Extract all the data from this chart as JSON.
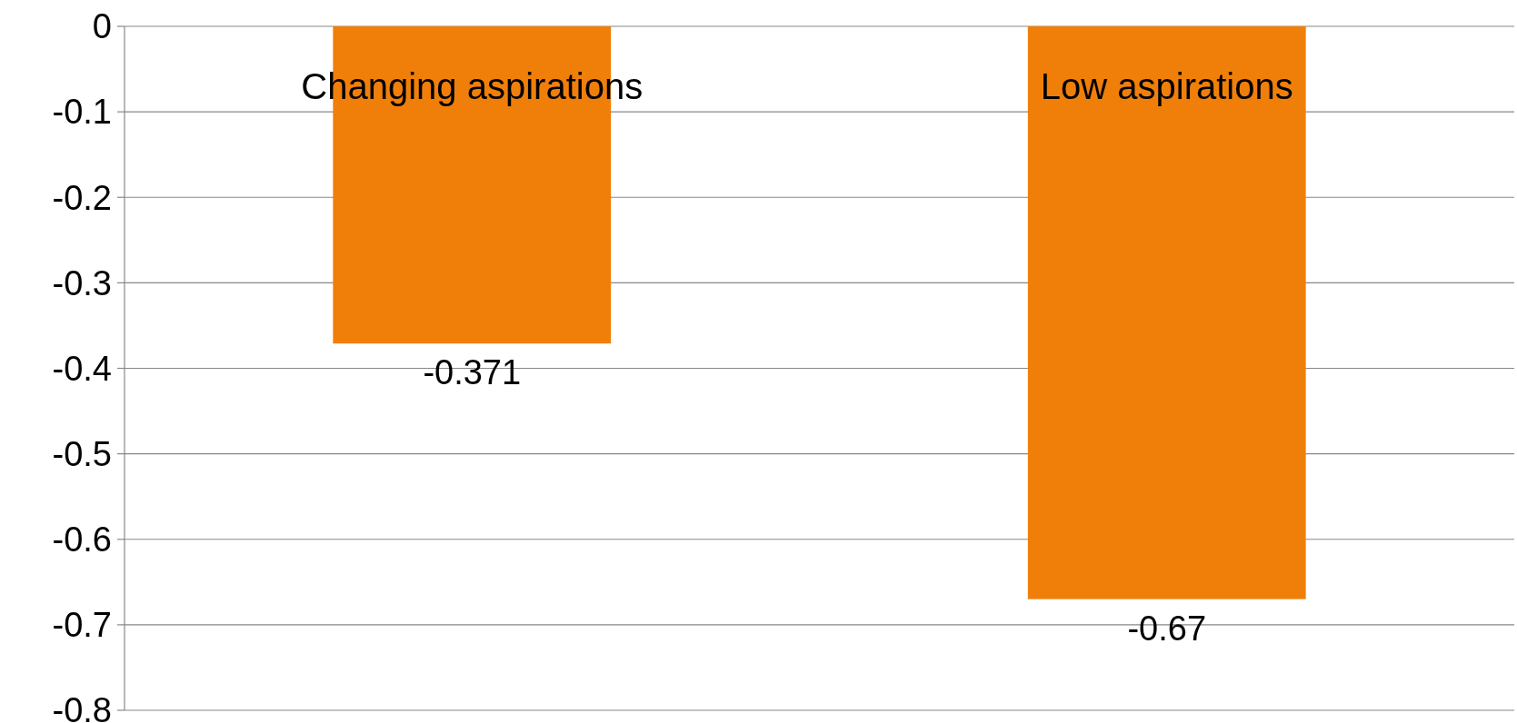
{
  "chart_data": {
    "type": "bar",
    "categories": [
      "Changing aspirations",
      "Low aspirations"
    ],
    "values": [
      -0.371,
      -0.67
    ],
    "color": "#f07f0a",
    "data_labels": true,
    "ylim": [
      -0.8,
      0
    ],
    "yticks": [
      -0.8,
      -0.7,
      -0.6,
      -0.5,
      -0.4,
      -0.3,
      -0.2,
      -0.1,
      0
    ],
    "grid": "y"
  }
}
